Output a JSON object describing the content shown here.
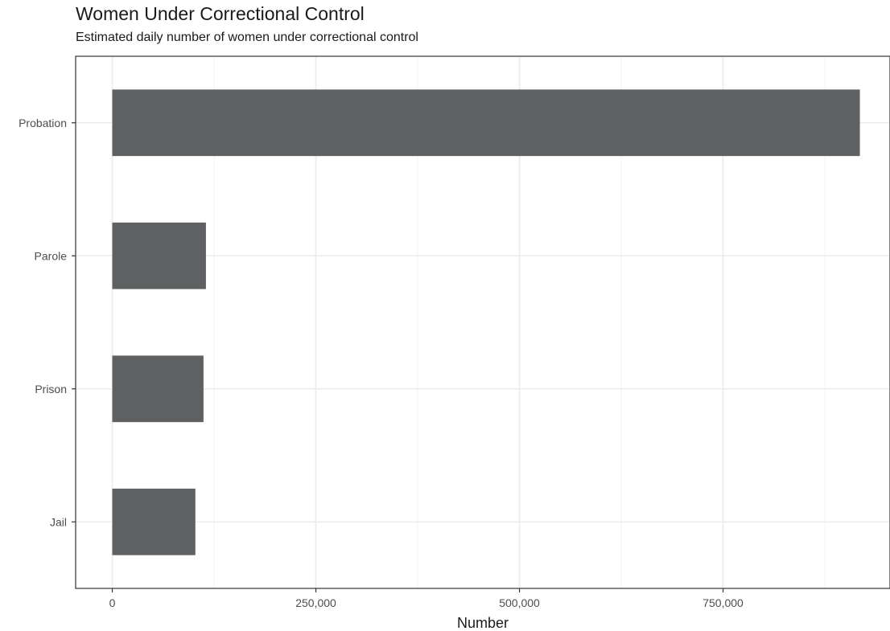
{
  "chart_data": {
    "type": "bar",
    "orientation": "horizontal",
    "title": "Women Under Correctional Control",
    "subtitle": "Estimated daily number of women under correctional control",
    "xlabel": "Number",
    "ylabel": "",
    "categories": [
      "Probation",
      "Parole",
      "Prison",
      "Jail"
    ],
    "values": [
      918000,
      115000,
      112000,
      102000
    ],
    "xlim": [
      -45000,
      955000
    ],
    "x_ticks": [
      0,
      250000,
      500000,
      750000
    ],
    "x_tick_labels": [
      "0",
      "250,000",
      "500,000",
      "750,000"
    ],
    "grid": true,
    "legend": "none",
    "bar_color": "#5f6062"
  }
}
